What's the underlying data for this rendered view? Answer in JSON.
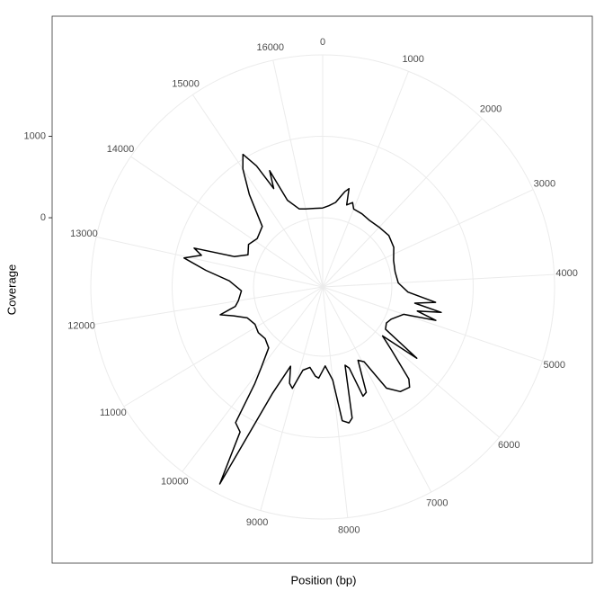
{
  "chart_data": {
    "type": "polar-line",
    "x_label": "Position (bp)",
    "y_label": "Coverage",
    "x": [
      0,
      200,
      400,
      600,
      690,
      750,
      900,
      1000,
      1300,
      1600,
      2000,
      2400,
      2800,
      3200,
      3600,
      4000,
      4300,
      4500,
      4600,
      4700,
      4800,
      4900,
      5000,
      5300,
      5500,
      5700,
      5850,
      5950,
      6100,
      6300,
      6400,
      6600,
      6800,
      6950,
      7100,
      7250,
      7350,
      7450,
      7550,
      7700,
      7780,
      7900,
      8000,
      8200,
      8400,
      8500,
      8700,
      8900,
      9050,
      9160,
      9300,
      9450,
      9555,
      9650,
      9790,
      9900,
      10000,
      10200,
      10500,
      10800,
      11100,
      11400,
      11600,
      11730,
      11850,
      12000,
      12300,
      12600,
      12800,
      12970,
      13100,
      13200,
      13300,
      13500,
      13800,
      14100,
      14500,
      14800,
      15000,
      15140,
      15250,
      15350,
      15440,
      15550,
      15800,
      16000,
      16300,
      16569
    ],
    "series": [
      {
        "color": "#000000",
        "values": [
          120,
          150,
          200,
          350,
          400,
          200,
          250,
          180,
          170,
          150,
          160,
          180,
          150,
          80,
          60,
          80,
          200,
          550,
          300,
          640,
          350,
          600,
          200,
          80,
          50,
          80,
          600,
          100,
          300,
          700,
          780,
          750,
          620,
          200,
          150,
          550,
          580,
          200,
          150,
          800,
          850,
          810,
          300,
          120,
          270,
          250,
          150,
          200,
          450,
          400,
          200,
          600,
          1880,
          1200,
          1130,
          600,
          400,
          150,
          100,
          120,
          100,
          150,
          300,
          455,
          250,
          200,
          150,
          300,
          600,
          890,
          690,
          800,
          300,
          150,
          200,
          150,
          200,
          600,
          900,
          1050,
          845,
          500,
          720,
          300,
          150,
          130,
          120,
          120
        ]
      }
    ],
    "xlim": [
      0,
      16569
    ],
    "xticks": [
      0,
      1000,
      2000,
      3000,
      4000,
      5000,
      6000,
      7000,
      8000,
      9000,
      10000,
      11000,
      12000,
      13000,
      14000,
      15000,
      16000
    ],
    "ylim": [
      -850,
      2000
    ],
    "yticks": [
      0,
      1000
    ],
    "grid": true
  }
}
